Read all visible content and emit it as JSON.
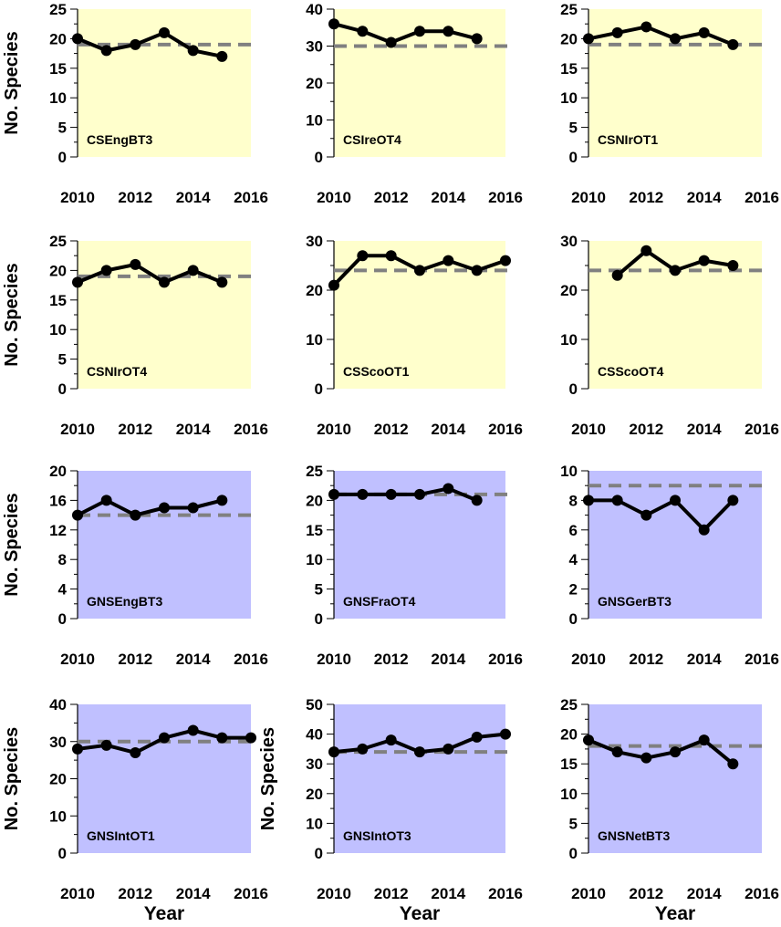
{
  "colors": {
    "cs_background": "#ffffcc",
    "gns_background": "#c0c0ff",
    "data_line": "#000000",
    "reference_line": "#808080"
  },
  "chart_data": [
    {
      "type": "line",
      "panel_label": "CSEngBT3",
      "background": "cs_background",
      "x": [
        2010,
        2011,
        2012,
        2013,
        2014,
        2015
      ],
      "values": [
        20,
        18,
        19,
        21,
        18,
        17
      ],
      "reference": 19,
      "xlim": [
        2010,
        2016
      ],
      "ylim": [
        0,
        25
      ],
      "xticks": [
        2010,
        2012,
        2014,
        2016
      ],
      "yticks": [
        0,
        5,
        10,
        15,
        20,
        25
      ],
      "ylabel": "No. Species",
      "xlabel": ""
    },
    {
      "type": "line",
      "panel_label": "CSIreOT4",
      "background": "cs_background",
      "x": [
        2010,
        2011,
        2012,
        2013,
        2014,
        2015
      ],
      "values": [
        36,
        34,
        31,
        34,
        34,
        32
      ],
      "reference": 30,
      "xlim": [
        2010,
        2016
      ],
      "ylim": [
        0,
        40
      ],
      "xticks": [
        2010,
        2012,
        2014,
        2016
      ],
      "yticks": [
        0,
        10,
        20,
        30,
        40
      ],
      "ylabel": "",
      "xlabel": ""
    },
    {
      "type": "line",
      "panel_label": "CSNIrOT1",
      "background": "cs_background",
      "x": [
        2010,
        2011,
        2012,
        2013,
        2014,
        2015
      ],
      "values": [
        20,
        21,
        22,
        20,
        21,
        19
      ],
      "reference": 19,
      "xlim": [
        2010,
        2016
      ],
      "ylim": [
        0,
        25
      ],
      "xticks": [
        2010,
        2012,
        2014,
        2016
      ],
      "yticks": [
        0,
        5,
        10,
        15,
        20,
        25
      ],
      "ylabel": "",
      "xlabel": ""
    },
    {
      "type": "line",
      "panel_label": "CSNIrOT4",
      "background": "cs_background",
      "x": [
        2010,
        2011,
        2012,
        2013,
        2014,
        2015
      ],
      "values": [
        18,
        20,
        21,
        18,
        20,
        18
      ],
      "reference": 19,
      "xlim": [
        2010,
        2016
      ],
      "ylim": [
        0,
        25
      ],
      "xticks": [
        2010,
        2012,
        2014,
        2016
      ],
      "yticks": [
        0,
        5,
        10,
        15,
        20,
        25
      ],
      "ylabel": "No. Species",
      "xlabel": ""
    },
    {
      "type": "line",
      "panel_label": "CSScoOT1",
      "background": "cs_background",
      "x": [
        2010,
        2011,
        2012,
        2013,
        2014,
        2015,
        2016
      ],
      "values": [
        21,
        27,
        27,
        24,
        26,
        24,
        26
      ],
      "reference": 24,
      "xlim": [
        2010,
        2016
      ],
      "ylim": [
        0,
        30
      ],
      "xticks": [
        2010,
        2012,
        2014,
        2016
      ],
      "yticks": [
        0,
        10,
        20,
        30
      ],
      "ylabel": "",
      "xlabel": ""
    },
    {
      "type": "line",
      "panel_label": "CSScoOT4",
      "background": "cs_background",
      "x": [
        2011,
        2012,
        2013,
        2014,
        2015
      ],
      "values": [
        23,
        28,
        24,
        26,
        25
      ],
      "reference": 24,
      "xlim": [
        2010,
        2016
      ],
      "ylim": [
        0,
        30
      ],
      "xticks": [
        2010,
        2012,
        2014,
        2016
      ],
      "yticks": [
        0,
        10,
        20,
        30
      ],
      "ylabel": "",
      "xlabel": ""
    },
    {
      "type": "line",
      "panel_label": "GNSEngBT3",
      "background": "gns_background",
      "x": [
        2010,
        2011,
        2012,
        2013,
        2014,
        2015
      ],
      "values": [
        14,
        16,
        14,
        15,
        15,
        16
      ],
      "reference": 14,
      "xlim": [
        2010,
        2016
      ],
      "ylim": [
        0,
        20
      ],
      "xticks": [
        2010,
        2012,
        2014,
        2016
      ],
      "yticks": [
        0,
        4,
        8,
        12,
        16,
        20
      ],
      "ylabel": "No. Species",
      "xlabel": ""
    },
    {
      "type": "line",
      "panel_label": "GNSFraOT4",
      "background": "gns_background",
      "x": [
        2010,
        2011,
        2012,
        2013,
        2014,
        2015
      ],
      "values": [
        21,
        21,
        21,
        21,
        22,
        20
      ],
      "reference": 21,
      "xlim": [
        2010,
        2016
      ],
      "ylim": [
        0,
        25
      ],
      "xticks": [
        2010,
        2012,
        2014,
        2016
      ],
      "yticks": [
        0,
        5,
        10,
        15,
        20,
        25
      ],
      "ylabel": "",
      "xlabel": ""
    },
    {
      "type": "line",
      "panel_label": "GNSGerBT3",
      "background": "gns_background",
      "x": [
        2010,
        2011,
        2012,
        2013,
        2014,
        2015
      ],
      "values": [
        8,
        8,
        7,
        8,
        6,
        8
      ],
      "reference": 9,
      "xlim": [
        2010,
        2016
      ],
      "ylim": [
        0,
        10
      ],
      "xticks": [
        2010,
        2012,
        2014,
        2016
      ],
      "yticks": [
        0,
        2,
        4,
        6,
        8,
        10
      ],
      "ylabel": "",
      "xlabel": ""
    },
    {
      "type": "line",
      "panel_label": "GNSIntOT1",
      "background": "gns_background",
      "x": [
        2010,
        2011,
        2012,
        2013,
        2014,
        2015,
        2016
      ],
      "values": [
        28,
        29,
        27,
        31,
        33,
        31,
        31
      ],
      "reference": 30,
      "xlim": [
        2010,
        2016
      ],
      "ylim": [
        0,
        40
      ],
      "xticks": [
        2010,
        2012,
        2014,
        2016
      ],
      "yticks": [
        0,
        10,
        20,
        30,
        40
      ],
      "ylabel": "No. Species",
      "xlabel": "Year"
    },
    {
      "type": "line",
      "panel_label": "GNSIntOT3",
      "background": "gns_background",
      "x": [
        2010,
        2011,
        2012,
        2013,
        2014,
        2015,
        2016
      ],
      "values": [
        34,
        35,
        38,
        34,
        35,
        39,
        40
      ],
      "reference": 34,
      "xlim": [
        2010,
        2016
      ],
      "ylim": [
        0,
        50
      ],
      "xticks": [
        2010,
        2012,
        2014,
        2016
      ],
      "yticks": [
        0,
        10,
        20,
        30,
        40,
        50
      ],
      "ylabel": "No. Species",
      "xlabel": "Year"
    },
    {
      "type": "line",
      "panel_label": "GNSNetBT3",
      "background": "gns_background",
      "x": [
        2010,
        2011,
        2012,
        2013,
        2014,
        2015
      ],
      "values": [
        19,
        17,
        16,
        17,
        19,
        15
      ],
      "reference": 18,
      "xlim": [
        2010,
        2016
      ],
      "ylim": [
        0,
        25
      ],
      "xticks": [
        2010,
        2012,
        2014,
        2016
      ],
      "yticks": [
        0,
        5,
        10,
        15,
        20,
        25
      ],
      "ylabel": "",
      "xlabel": "Year"
    }
  ]
}
